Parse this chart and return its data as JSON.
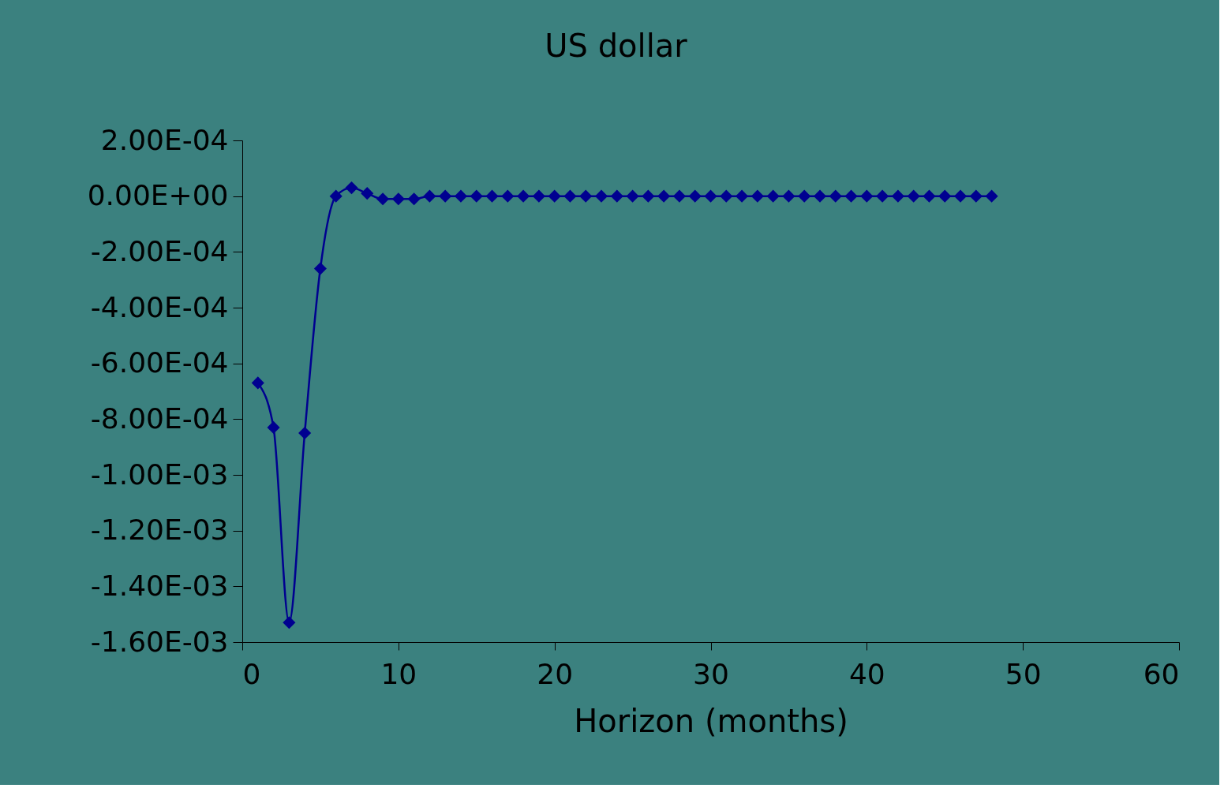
{
  "chart_data": {
    "type": "line",
    "title": "US dollar",
    "xlabel": "Horizon (months)",
    "x": [
      1,
      2,
      3,
      4,
      5,
      6,
      7,
      8,
      9,
      10,
      11,
      12,
      13,
      14,
      15,
      16,
      17,
      18,
      19,
      20,
      21,
      22,
      23,
      24,
      25,
      26,
      27,
      28,
      29,
      30,
      31,
      32,
      33,
      34,
      35,
      36,
      37,
      38,
      39,
      40,
      41,
      42,
      43,
      44,
      45,
      46,
      47,
      48
    ],
    "series": [
      {
        "color": "#000090",
        "values": [
          -0.00067,
          -0.00083,
          -0.00153,
          -0.00085,
          -0.00026,
          0,
          3e-05,
          1e-05,
          -1e-05,
          -1e-05,
          -1e-05,
          0,
          0,
          0,
          0,
          0,
          0,
          0,
          0,
          0,
          0,
          0,
          0,
          0,
          0,
          0,
          0,
          0,
          0,
          0,
          0,
          0,
          0,
          0,
          0,
          0,
          0,
          0,
          0,
          0,
          0,
          0,
          0,
          0,
          0,
          0,
          0,
          0
        ]
      }
    ],
    "xlim": [
      0,
      60
    ],
    "xticks": [
      0,
      10,
      20,
      30,
      40,
      50,
      60
    ],
    "ylim": [
      -0.0016,
      0.0002
    ],
    "yticks": [
      {
        "value": 0.0002,
        "label": "2.00E-04"
      },
      {
        "value": 0,
        "label": "0.00E+00"
      },
      {
        "value": -0.0002,
        "label": "-2.00E-04"
      },
      {
        "value": -0.0004,
        "label": "-4.00E-04"
      },
      {
        "value": -0.0006,
        "label": "-6.00E-04"
      },
      {
        "value": -0.0008,
        "label": "-8.00E-04"
      },
      {
        "value": -0.001,
        "label": "-1.00E-03"
      },
      {
        "value": -0.0012,
        "label": "-1.20E-03"
      },
      {
        "value": -0.0014,
        "label": "-1.40E-03"
      },
      {
        "value": -0.0016,
        "label": "-1.60E-03"
      }
    ],
    "grid": false,
    "marker": "diamond",
    "line_style": "solid"
  }
}
